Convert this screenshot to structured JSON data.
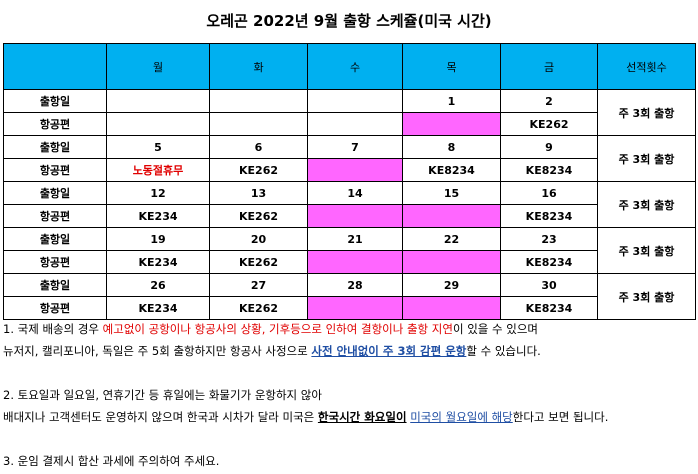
{
  "title": "오레곤 2022년 9월 출항 스케쥴(미국 시간)",
  "headers": [
    "",
    "월",
    "화",
    "수",
    "목",
    "금",
    "선적횟수"
  ],
  "weeks": [
    {
      "dep_label": "출항일",
      "air_label": "항공편",
      "dates": [
        "",
        "",
        "",
        "1",
        "2"
      ],
      "flights": [
        "",
        "",
        "",
        "",
        "KE262"
      ],
      "pink": [
        false,
        false,
        false,
        true,
        false
      ],
      "freq": "주 3회 출항"
    },
    {
      "dep_label": "출항일",
      "air_label": "항공편",
      "dates": [
        "5",
        "6",
        "7",
        "8",
        "9"
      ],
      "flights": [
        "노동절휴무",
        "KE262",
        "",
        "KE8234",
        "KE8234"
      ],
      "pink": [
        false,
        false,
        true,
        false,
        false
      ],
      "freq": "주 3회 출항"
    },
    {
      "dep_label": "출항일",
      "air_label": "항공편",
      "dates": [
        "12",
        "13",
        "14",
        "15",
        "16"
      ],
      "flights": [
        "KE234",
        "KE262",
        "",
        "",
        "KE8234"
      ],
      "pink": [
        false,
        false,
        true,
        true,
        false
      ],
      "freq": "주 3회 출항"
    },
    {
      "dep_label": "출항일",
      "air_label": "항공편",
      "dates": [
        "19",
        "20",
        "21",
        "22",
        "23"
      ],
      "flights": [
        "KE234",
        "KE262",
        "",
        "",
        "KE8234"
      ],
      "pink": [
        false,
        false,
        true,
        true,
        false
      ],
      "freq": "주 3회 출항"
    },
    {
      "dep_label": "출항일",
      "air_label": "항공편",
      "dates": [
        "26",
        "27",
        "28",
        "29",
        "30"
      ],
      "flights": [
        "KE234",
        "KE262",
        "",
        "",
        "KE8234"
      ],
      "pink": [
        false,
        false,
        true,
        true,
        false
      ],
      "freq": "주 3회 출항"
    }
  ],
  "notes": {
    "n1_a": "1. 국제 배송의 경우 ",
    "n1_b": "예고없이 공항이나 항공사의 상황, 기후등으로 인하여 결항이나 출항 지연",
    "n1_c": "이 있을 수 있으며",
    "n1_d": "뉴저지, 캘리포니아, 독일은 주 5회 출항하지만 항공사 사정으로 ",
    "n1_e": "사전 안내없이 주 3회 감편 운항",
    "n1_f": "할 수 있습니다.",
    "n2_a": "2. 토요일과 일요일, 연휴기간 등 휴일에는 화물기가 운항하지 않아",
    "n2_b": "배대지나 고객센터도 운영하지 않으며 한국과 시차가 달라 미국은 ",
    "n2_c": "한국시간 화요일이",
    "n2_d": " ",
    "n2_e": "미국의 월요일에 해당",
    "n2_f": "한다고 보면 됩니다.",
    "n3": "3. 운임 결제시 합산 과세에 주의하여 주세요."
  }
}
